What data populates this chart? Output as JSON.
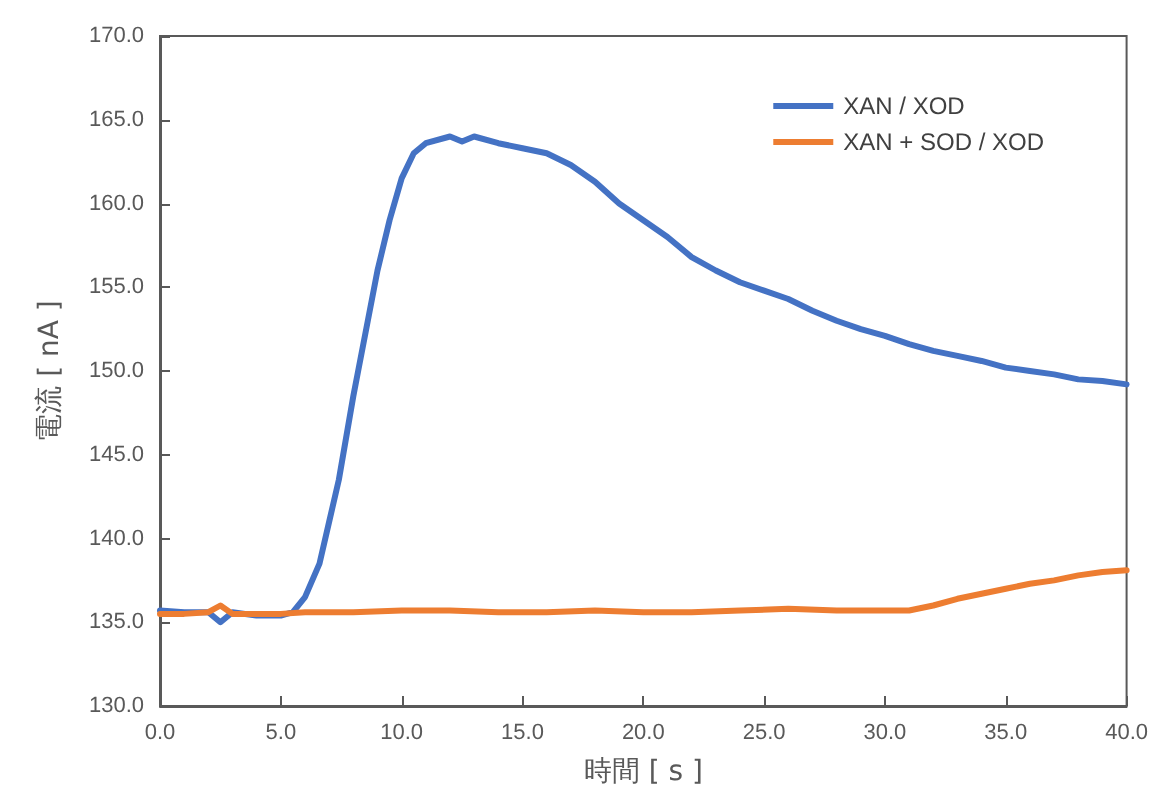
{
  "chart_data": {
    "type": "line",
    "xlabel": "時間 [ s ]",
    "ylabel": "電流 [ nA ]",
    "xlim": [
      0,
      40
    ],
    "ylim": [
      130,
      170
    ],
    "xticks": [
      {
        "value": 0,
        "label": "0.0"
      },
      {
        "value": 5,
        "label": "5.0"
      },
      {
        "value": 10,
        "label": "10.0"
      },
      {
        "value": 15,
        "label": "15.0"
      },
      {
        "value": 20,
        "label": "20.0"
      },
      {
        "value": 25,
        "label": "25.0"
      },
      {
        "value": 30,
        "label": "30.0"
      },
      {
        "value": 35,
        "label": "35.0"
      },
      {
        "value": 40,
        "label": "40.0"
      }
    ],
    "yticks": [
      {
        "value": 130,
        "label": "130.0"
      },
      {
        "value": 135,
        "label": "135.0"
      },
      {
        "value": 140,
        "label": "140.0"
      },
      {
        "value": 145,
        "label": "145.0"
      },
      {
        "value": 150,
        "label": "150.0"
      },
      {
        "value": 155,
        "label": "155.0"
      },
      {
        "value": 160,
        "label": "160.0"
      },
      {
        "value": 165,
        "label": "165.0"
      },
      {
        "value": 170,
        "label": "170.0"
      }
    ],
    "grid": false,
    "legend": "top right",
    "marker": "none",
    "line_style": "solid",
    "series": [
      {
        "name": "XAN / XOD",
        "color": "#4472c4",
        "x": [
          0,
          1,
          2,
          2.5,
          3,
          4,
          5,
          5.5,
          6,
          6.6,
          7,
          7.4,
          8,
          8.2,
          8.6,
          9,
          9.5,
          10,
          10.5,
          11,
          12,
          12.5,
          13,
          14,
          15,
          16,
          17,
          18,
          19,
          20,
          21,
          22,
          23,
          24,
          25,
          26,
          27,
          28,
          29,
          30,
          31,
          32,
          33,
          34,
          35,
          36,
          37,
          38,
          39,
          40
        ],
        "values": [
          135.7,
          135.6,
          135.6,
          135.0,
          135.6,
          135.4,
          135.4,
          135.6,
          136.5,
          138.5,
          141,
          143.5,
          148.5,
          150,
          153,
          156,
          159,
          161.5,
          163,
          163.6,
          164,
          163.7,
          164,
          163.6,
          163.3,
          163,
          162.3,
          161.3,
          160,
          159,
          158,
          156.8,
          156,
          155.3,
          154.8,
          154.3,
          153.6,
          153,
          152.5,
          152.1,
          151.6,
          151.2,
          150.9,
          150.6,
          150.2,
          150,
          149.8,
          149.5,
          149.4,
          149.2
        ]
      },
      {
        "name": "XAN + SOD / XOD",
        "color": "#ed7d31",
        "x": [
          0,
          1,
          2,
          2.5,
          3,
          4,
          5,
          6,
          8,
          10,
          12,
          14,
          16,
          18,
          20,
          22,
          24,
          26,
          28,
          30,
          31,
          32,
          33,
          34,
          35,
          36,
          37,
          38,
          39,
          40
        ],
        "values": [
          135.5,
          135.5,
          135.6,
          136,
          135.5,
          135.5,
          135.5,
          135.6,
          135.6,
          135.7,
          135.7,
          135.6,
          135.6,
          135.7,
          135.6,
          135.6,
          135.7,
          135.8,
          135.7,
          135.7,
          135.7,
          136,
          136.4,
          136.7,
          137,
          137.3,
          137.5,
          137.8,
          138,
          138.1
        ]
      }
    ]
  }
}
